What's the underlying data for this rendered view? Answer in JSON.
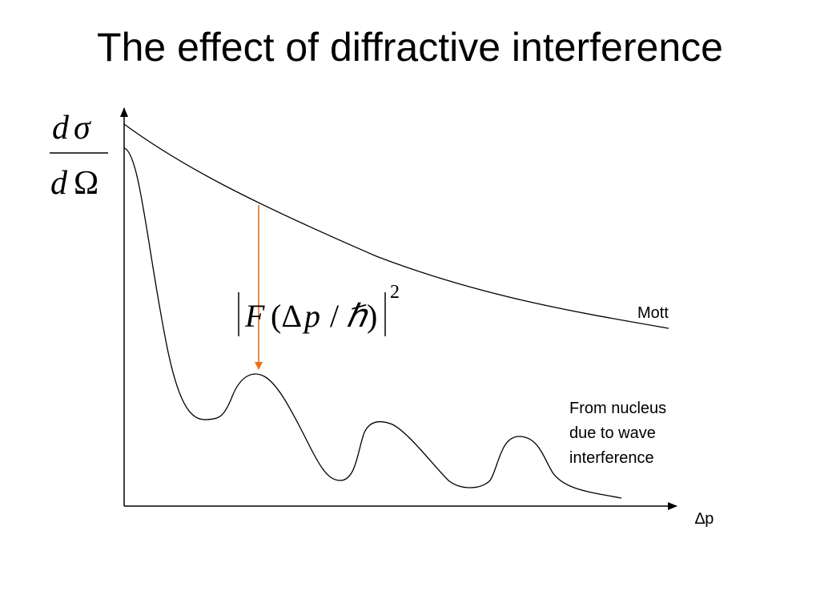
{
  "slide": {
    "title": "The effect of diffractive interference"
  },
  "diagram": {
    "y_axis_label": {
      "numerator_d": "d",
      "numerator_sigma": "σ",
      "denominator_d": "d",
      "denominator_omega": "Ω"
    },
    "x_axis_label": "∆p",
    "formula": {
      "F": "F",
      "open": "(",
      "delta": "∆",
      "p": "p",
      "slash": "/",
      "hbar": "ℏ",
      "close": ")",
      "exponent": "2"
    },
    "curve_labels": {
      "mott": "Mott",
      "nucleus_line1": "From nucleus",
      "nucleus_line2": "due to wave",
      "nucleus_line3": "interference"
    },
    "colors": {
      "axes": "#000000",
      "curves": "#000000",
      "arrow": "#e8701a"
    }
  }
}
